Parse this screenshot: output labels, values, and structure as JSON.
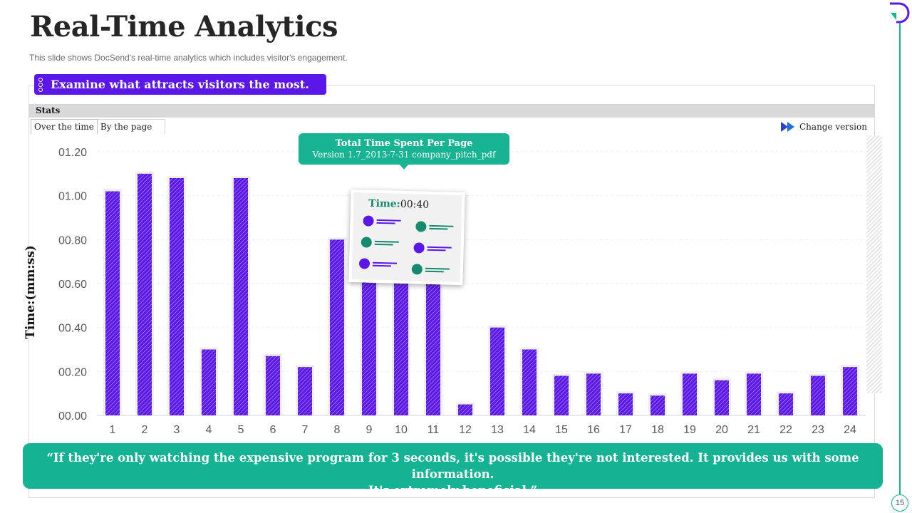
{
  "header": {
    "title": "Real-Time Analytics",
    "subtitle": "This slide shows DocSend's real-time analytics which includes visitor's engagement."
  },
  "headline": "Examine what attracts visitors the most.",
  "stats_label": "Stats",
  "tabs": [
    "Over the time",
    "By the page"
  ],
  "change_version": "Change version",
  "callout": {
    "title": "Total Time Spent Per Page",
    "subtitle": "Version 1.7_2013-7-31 company_pitch_pdf"
  },
  "time_card": {
    "label": "Time:",
    "value": "00:40"
  },
  "quote": {
    "line1": "“If they're only watching the expensive program for 3 seconds, it's possible they're not interested. It provides us with some information.",
    "line2": "It's extremely beneficial.”"
  },
  "page_number": "15",
  "colors": {
    "accent_purple": "#5b17e8",
    "accent_teal": "#15b294",
    "bar_color": "#5b17e8"
  },
  "chart_data": {
    "type": "bar",
    "title": "Total Time Spent Per Page",
    "xlabel": "",
    "ylabel": "Time:(mm:ss)",
    "categories": [
      "1",
      "2",
      "3",
      "4",
      "5",
      "6",
      "7",
      "8",
      "9",
      "10",
      "11",
      "12",
      "13",
      "14",
      "15",
      "16",
      "17",
      "18",
      "19",
      "20",
      "21",
      "22",
      "23",
      "24"
    ],
    "values": [
      1.02,
      1.1,
      1.08,
      0.3,
      1.08,
      0.27,
      0.22,
      0.8,
      0.66,
      0.64,
      0.62,
      0.05,
      0.4,
      0.3,
      0.18,
      0.19,
      0.1,
      0.09,
      0.19,
      0.16,
      0.19,
      0.1,
      0.18,
      0.22
    ],
    "y_ticks": [
      "00.00",
      "00.20",
      "00.40",
      "00.60",
      "00.80",
      "01.00",
      "01.20"
    ],
    "y_tick_values": [
      0,
      0.2,
      0.4,
      0.6,
      0.8,
      1.0,
      1.2
    ],
    "ylim": [
      0,
      1.2
    ],
    "grid": true
  }
}
